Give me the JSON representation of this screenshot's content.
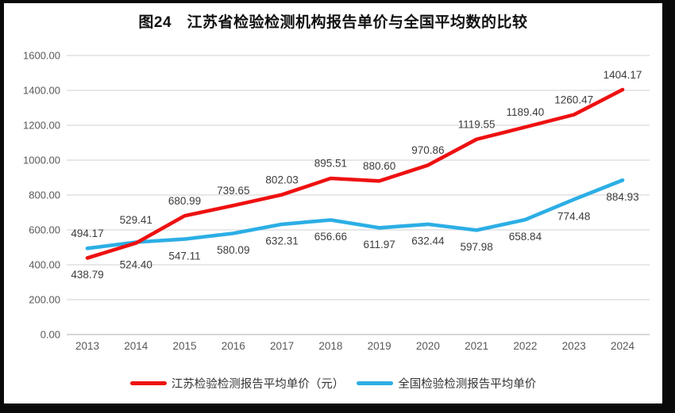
{
  "title": "图24　江苏省检验检测机构报告单价与全国平均数的比较",
  "legend": [
    {
      "label": "江苏检验检测报告平均单价（元）",
      "color": "#ee1111"
    },
    {
      "label": "全国检验检测报告平均单价",
      "color": "#2caee5"
    }
  ],
  "chart_data": {
    "type": "line",
    "title": "图24　江苏省检验检测机构报告单价与全国平均数的比较",
    "categories": [
      "2013",
      "2014",
      "2015",
      "2016",
      "2017",
      "2018",
      "2019",
      "2020",
      "2021",
      "2022",
      "2023",
      "2024"
    ],
    "series": [
      {
        "name": "江苏检验检测报告平均单价（元）",
        "color": "#ee1111",
        "values": [
          438.79,
          524.4,
          680.99,
          739.65,
          802.03,
          895.51,
          880.6,
          970.86,
          1119.55,
          1189.4,
          1260.47,
          1404.17
        ],
        "label_side": [
          "below",
          "below",
          "above",
          "above",
          "above",
          "above",
          "above",
          "above",
          "above",
          "above",
          "above",
          "above"
        ]
      },
      {
        "name": "全国检验检测报告平均单价",
        "color": "#2caee5",
        "values": [
          494.17,
          529.41,
          547.11,
          580.09,
          632.31,
          656.66,
          611.97,
          632.44,
          597.98,
          658.84,
          774.48,
          884.93
        ],
        "label_side": [
          "above",
          "above",
          "below",
          "below",
          "below",
          "below",
          "below",
          "below",
          "below",
          "below",
          "below",
          "below"
        ]
      }
    ],
    "ylim": [
      0,
      1600
    ],
    "y_tick_labels": [
      "0.00",
      "200.00",
      "400.00",
      "600.00",
      "800.00",
      "1000.00",
      "1200.00",
      "1400.00",
      "1600.00"
    ],
    "grid": true,
    "grid_color": "#d9d9d9",
    "axis_text_color": "#595959",
    "data_label_color": "#3c3c3c",
    "data_labels": true,
    "legend_position": "bottom",
    "xlabel": "",
    "ylabel": ""
  }
}
